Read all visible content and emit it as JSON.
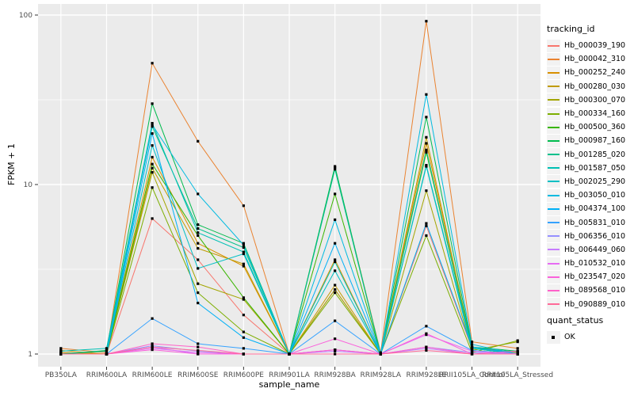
{
  "colors": {
    "panel_bg": "#EBEBEB",
    "grid": "#FFFFFF",
    "tick_mark": "#333333",
    "tick_label": "#4D4D4D",
    "point": "#000000"
  },
  "axes": {
    "y": {
      "label": "FPKM + 1",
      "ticks": [
        {
          "label": "100",
          "value": 100
        },
        {
          "label": "10",
          "value": 10
        },
        {
          "label": "1",
          "value": 1
        }
      ],
      "minor": [
        3.1623,
        31.623
      ]
    },
    "x": {
      "label": "sample_name"
    }
  },
  "legend": {
    "tracking_title": "tracking_id",
    "quant_title": "quant_status",
    "quant_ok_label": "OK"
  },
  "chart_data": {
    "type": "line",
    "yscale": "log10",
    "ylim": [
      0.85,
      115
    ],
    "grid": true,
    "legend_position": "right",
    "title": "",
    "xlabel": "sample_name",
    "ylabel": "FPKM + 1",
    "point_marker": "black-square",
    "x": [
      "PB350LA",
      "RRIM600LA",
      "RRIM600LE",
      "RRIM600SE",
      "RRIM600PE",
      "RRIM901LA",
      "RRIM928BA",
      "RRIM928LA",
      "RRIM928LE",
      "RRII105LA_Control",
      "RRII105LA_Stressed"
    ],
    "series": [
      {
        "name": "Hb_000039_190",
        "color": "#F8766D",
        "values": [
          1.02,
          1.0,
          6.3,
          3.6,
          1.7,
          1.0,
          2.4,
          1.0,
          5.7,
          1.08,
          1.02
        ]
      },
      {
        "name": "Hb_000042_310",
        "color": "#EA8331",
        "values": [
          1.08,
          1.02,
          52,
          18,
          7.5,
          1.0,
          12.6,
          1.02,
          92,
          1.18,
          1.08
        ]
      },
      {
        "name": "Hb_000252_240",
        "color": "#D89000",
        "values": [
          1.05,
          1.0,
          14.5,
          4.5,
          3.3,
          1.0,
          3.6,
          1.0,
          17.5,
          1.1,
          1.02
        ]
      },
      {
        "name": "Hb_000280_030",
        "color": "#C09B00",
        "values": [
          1.02,
          1.0,
          12.5,
          4.2,
          3.4,
          1.0,
          2.55,
          1.0,
          19,
          1.08,
          1.0
        ]
      },
      {
        "name": "Hb_000300_070",
        "color": "#A3A500",
        "values": [
          1.0,
          1.0,
          11.8,
          2.6,
          2.1,
          1.0,
          2.4,
          1.0,
          9.2,
          1.05,
          1.18
        ]
      },
      {
        "name": "Hb_000334_160",
        "color": "#7CAE00",
        "values": [
          1.0,
          1.0,
          9.6,
          2.3,
          1.35,
          1.0,
          2.3,
          1.0,
          5.0,
          1.02,
          1.2
        ]
      },
      {
        "name": "Hb_000500_360",
        "color": "#39B600",
        "values": [
          1.0,
          1.0,
          13.2,
          5.0,
          2.15,
          1.0,
          8.8,
          1.0,
          15.5,
          1.08,
          1.0
        ]
      },
      {
        "name": "Hb_000987_160",
        "color": "#00BB4E",
        "values": [
          1.0,
          1.05,
          30,
          5.8,
          4.5,
          1.0,
          12.8,
          1.0,
          25,
          1.1,
          1.04
        ]
      },
      {
        "name": "Hb_001285_020",
        "color": "#00C08B",
        "values": [
          1.0,
          1.04,
          22,
          5.5,
          4.25,
          1.0,
          12.3,
          1.0,
          16,
          1.08,
          1.03
        ]
      },
      {
        "name": "Hb_001587_050",
        "color": "#00C0B4",
        "values": [
          1.04,
          1.08,
          23,
          5.2,
          4.0,
          1.0,
          3.5,
          1.0,
          13,
          1.08,
          1.0
        ]
      },
      {
        "name": "Hb_002025_290",
        "color": "#00BFC4",
        "values": [
          1.0,
          1.0,
          17,
          3.2,
          3.9,
          1.0,
          3.1,
          1.0,
          12.8,
          1.05,
          1.0
        ]
      },
      {
        "name": "Hb_003050_010",
        "color": "#00BAE0",
        "values": [
          1.0,
          1.0,
          22.5,
          8.8,
          4.4,
          1.0,
          6.2,
          1.0,
          34,
          1.14,
          1.0
        ]
      },
      {
        "name": "Hb_004374_100",
        "color": "#00B0F6",
        "values": [
          1.0,
          1.0,
          20,
          2.0,
          1.25,
          1.0,
          4.5,
          1.0,
          5.9,
          1.1,
          1.0
        ]
      },
      {
        "name": "Hb_005831_010",
        "color": "#35A2FF",
        "values": [
          1.0,
          1.0,
          1.62,
          1.15,
          1.08,
          1.0,
          1.57,
          1.0,
          1.46,
          1.05,
          1.0
        ]
      },
      {
        "name": "Hb_006356_010",
        "color": "#9590FF",
        "values": [
          1.0,
          1.0,
          1.12,
          1.04,
          1.0,
          1.0,
          1.06,
          1.0,
          1.1,
          1.02,
          1.0
        ]
      },
      {
        "name": "Hb_006449_060",
        "color": "#C77CFF",
        "values": [
          1.0,
          1.0,
          1.1,
          1.0,
          1.0,
          1.0,
          1.04,
          1.0,
          1.08,
          1.0,
          1.0
        ]
      },
      {
        "name": "Hb_010532_010",
        "color": "#E76BF3",
        "values": [
          1.0,
          1.0,
          1.08,
          1.02,
          1.0,
          1.0,
          1.06,
          1.0,
          1.3,
          1.04,
          1.0
        ]
      },
      {
        "name": "Hb_023547_020",
        "color": "#FA62DB",
        "values": [
          1.0,
          1.0,
          1.06,
          1.0,
          1.0,
          1.0,
          1.23,
          1.0,
          1.32,
          1.0,
          1.0
        ]
      },
      {
        "name": "Hb_089568_010",
        "color": "#FF61C9",
        "values": [
          1.0,
          1.0,
          1.15,
          1.1,
          1.0,
          1.0,
          1.06,
          1.0,
          1.1,
          1.0,
          1.04
        ]
      },
      {
        "name": "Hb_090889_010",
        "color": "#FF6A98",
        "values": [
          1.0,
          1.0,
          1.1,
          1.05,
          1.0,
          1.0,
          1.0,
          1.0,
          1.05,
          1.0,
          1.0
        ]
      }
    ]
  }
}
